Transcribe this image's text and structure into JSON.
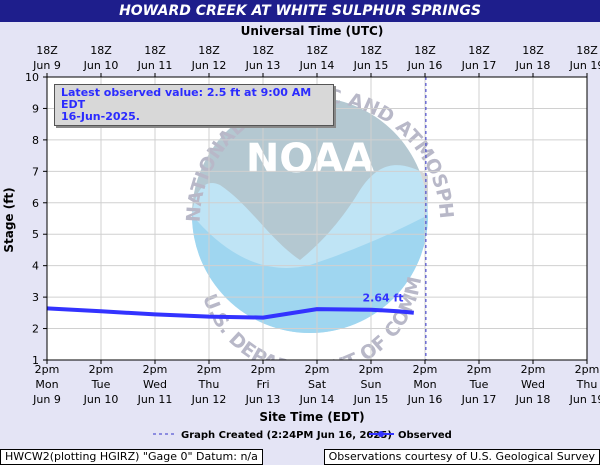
{
  "header": {
    "title": "HOWARD CREEK AT WHITE SULPHUR SPRINGS"
  },
  "chart_data": {
    "type": "line",
    "title": "HOWARD CREEK AT WHITE SULPHUR SPRINGS",
    "top_axis_label": "Universal Time (UTC)",
    "xlabel": "Site Time (EDT)",
    "ylabel": "Stage (ft)",
    "ylim": [
      1,
      10
    ],
    "yticks": [
      "1",
      "2",
      "3",
      "4",
      "5",
      "6",
      "7",
      "8",
      "9",
      "10"
    ],
    "top_ticks": [
      {
        "time": "18Z",
        "date": "Jun 9"
      },
      {
        "time": "18Z",
        "date": "Jun 10"
      },
      {
        "time": "18Z",
        "date": "Jun 11"
      },
      {
        "time": "18Z",
        "date": "Jun 12"
      },
      {
        "time": "18Z",
        "date": "Jun 13"
      },
      {
        "time": "18Z",
        "date": "Jun 14"
      },
      {
        "time": "18Z",
        "date": "Jun 15"
      },
      {
        "time": "18Z",
        "date": "Jun 16"
      },
      {
        "time": "18Z",
        "date": "Jun 17"
      },
      {
        "time": "18Z",
        "date": "Jun 18"
      },
      {
        "time": "18Z",
        "date": "Jun 19"
      }
    ],
    "bottom_ticks": [
      {
        "time": "2pm",
        "day": "Mon",
        "date": "Jun 9"
      },
      {
        "time": "2pm",
        "day": "Tue",
        "date": "Jun 10"
      },
      {
        "time": "2pm",
        "day": "Wed",
        "date": "Jun 11"
      },
      {
        "time": "2pm",
        "day": "Thu",
        "date": "Jun 12"
      },
      {
        "time": "2pm",
        "day": "Fri",
        "date": "Jun 13"
      },
      {
        "time": "2pm",
        "day": "Sat",
        "date": "Jun 14"
      },
      {
        "time": "2pm",
        "day": "Sun",
        "date": "Jun 15"
      },
      {
        "time": "2pm",
        "day": "Mon",
        "date": "Jun 16"
      },
      {
        "time": "2pm",
        "day": "Tue",
        "date": "Jun 17"
      },
      {
        "time": "2pm",
        "day": "Wed",
        "date": "Jun 18"
      },
      {
        "time": "2pm",
        "day": "Thu",
        "date": "Jun 19"
      }
    ],
    "series": [
      {
        "name": "Observed",
        "color": "#3333ff",
        "points": [
          [
            "Jun 9 2pm",
            2.64
          ],
          [
            "Jun 10 2pm",
            2.55
          ],
          [
            "Jun 11 2pm",
            2.45
          ],
          [
            "Jun 12 2pm",
            2.38
          ],
          [
            "Jun 13 2pm",
            2.35
          ],
          [
            "Jun 14 2pm",
            2.62
          ],
          [
            "Jun 15 2pm",
            2.6
          ],
          [
            "Jun 16 2am",
            2.55
          ],
          [
            "Jun 16 9am",
            2.5
          ]
        ]
      }
    ],
    "graph_created_marker": "Jun 16 2:24PM",
    "annotation": "2.64 ft",
    "latest_value_line1": "Latest observed value: 2.5 ft at 9:00 AM EDT",
    "latest_value_line2": "16-Jun-2025.",
    "legend": {
      "position": "bottom",
      "graph_created": "Graph Created (2:24PM Jun 16, 2025)",
      "observed": "Observed"
    },
    "grid": true
  },
  "watermark": {
    "top": "ATMOSPHERIC ADMINISTRATION",
    "left": "NATIONAL OCEANIC AND",
    "bottom": "U.S. DEPARTMENT OF COMMERCE",
    "center": "NOAA"
  },
  "footer": {
    "left": "HWCW2(plotting HGIRZ) \"Gage 0\" Datum: n/a",
    "right": "Observations courtesy of U.S. Geological Survey"
  }
}
